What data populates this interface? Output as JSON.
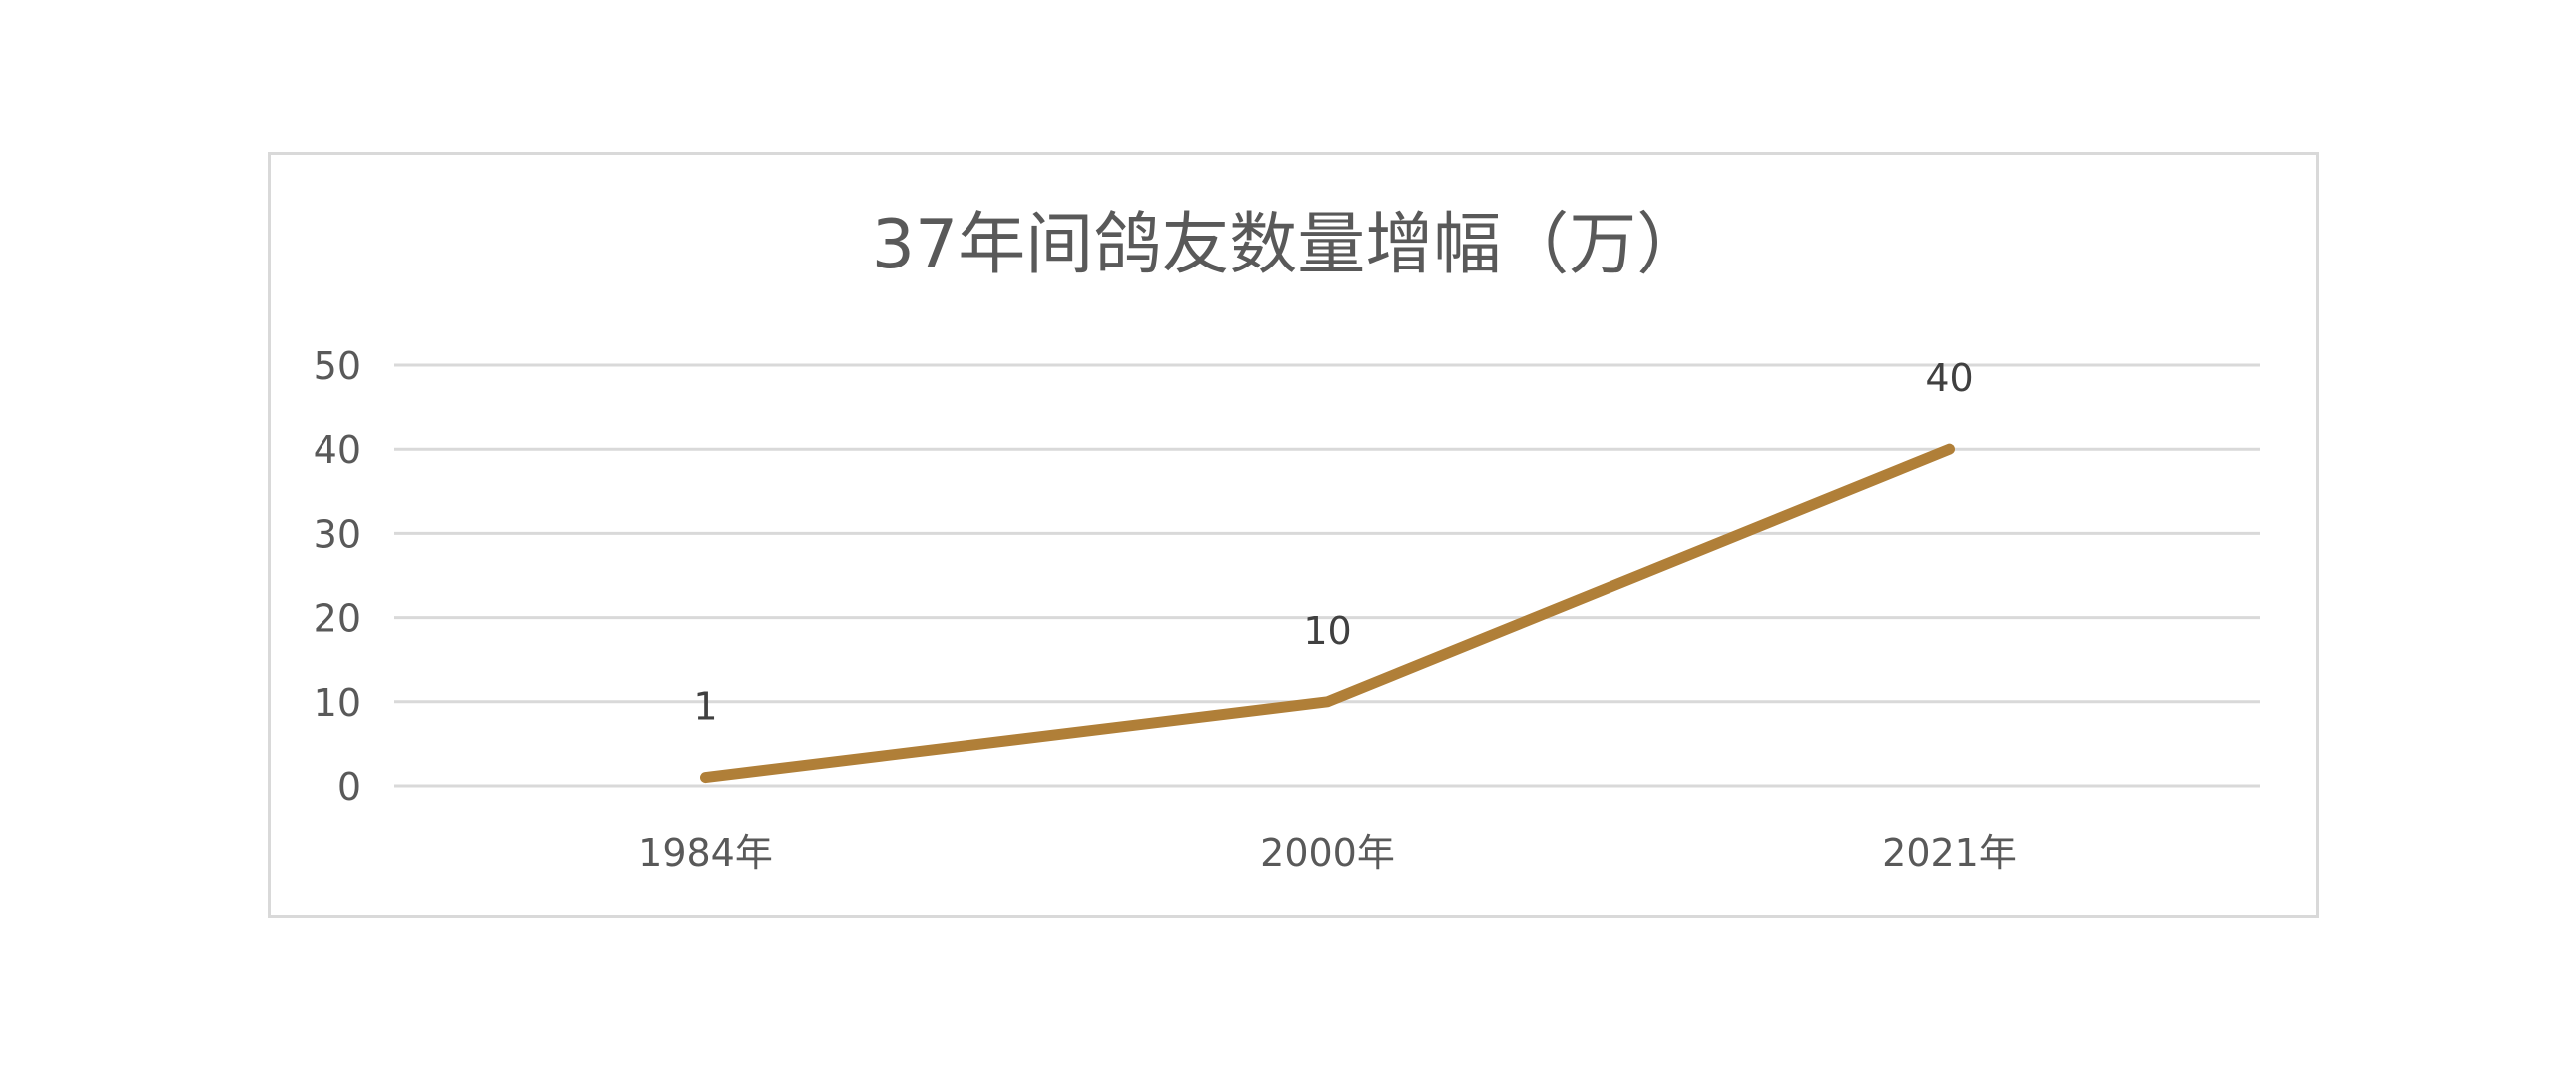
{
  "chart_data": {
    "type": "line",
    "title": "37年间鸽友数量增幅（万）",
    "categories": [
      "1984年",
      "2000年",
      "2021年"
    ],
    "series": [
      {
        "values": [
          1,
          10,
          40
        ],
        "color": "#B07F38"
      }
    ],
    "data_labels": [
      "1",
      "10",
      "40"
    ],
    "yticks": [
      "0",
      "10",
      "20",
      "30",
      "40",
      "50"
    ],
    "ylim": [
      0,
      50
    ],
    "grid": true,
    "gridline_color": "#d9d9d9",
    "legend": "none"
  }
}
